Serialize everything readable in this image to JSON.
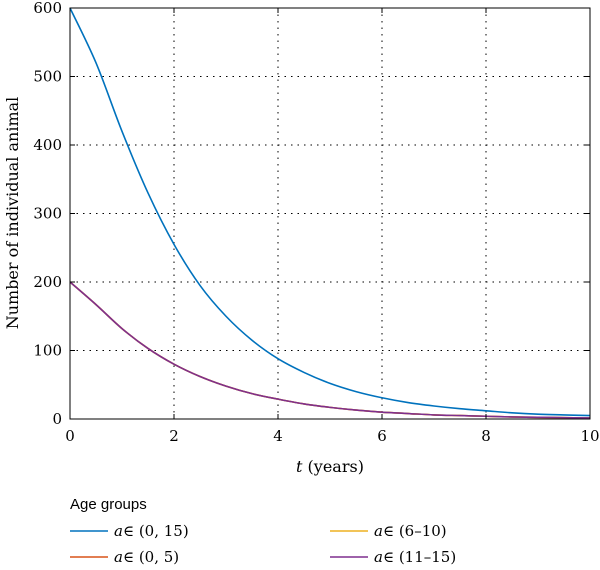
{
  "chart_data": {
    "type": "line",
    "xlabel_italic": "t",
    "xlabel_rest": " (years)",
    "ylabel": "Number of individual animal",
    "xlim": [
      0,
      10
    ],
    "ylim": [
      0,
      600
    ],
    "xticks": [
      0,
      2,
      4,
      6,
      8,
      10
    ],
    "yticks": [
      0,
      100,
      200,
      300,
      400,
      500,
      600
    ],
    "grid": true,
    "legend": {
      "title": "Age groups",
      "placement": "bottom"
    },
    "series": [
      {
        "name_italic": "a",
        "name_rest": "∈ (0, 15)",
        "color": "#0072BD",
        "x": [
          0,
          0.5,
          1,
          1.5,
          2,
          2.5,
          3,
          3.5,
          4,
          4.5,
          5,
          5.5,
          6,
          6.5,
          7,
          7.5,
          8,
          8.5,
          9,
          9.5,
          10
        ],
        "y": [
          600,
          520,
          420,
          330,
          255,
          195,
          150,
          115,
          88,
          68,
          52,
          40,
          31,
          24,
          19,
          15,
          12,
          9,
          7,
          6,
          5
        ]
      },
      {
        "name_italic": "a",
        "name_rest": "∈ (0, 5)",
        "color": "#D95319",
        "x": [
          0,
          0.5,
          1,
          1.5,
          2,
          2.5,
          3,
          3.5,
          4,
          4.5,
          5,
          5.5,
          6,
          6.5,
          7,
          7.5,
          8,
          8.5,
          9,
          9.5,
          10
        ],
        "y": [
          200,
          167,
          132,
          103,
          80,
          62,
          48,
          37,
          29,
          22,
          17,
          13,
          10,
          8,
          6,
          5,
          4,
          3,
          2.5,
          2,
          1.5
        ]
      },
      {
        "name_italic": "a",
        "name_rest": "∈ (6–10)",
        "color": "#EDB120",
        "x": [
          0,
          0.5,
          1,
          1.5,
          2,
          2.5,
          3,
          3.5,
          4,
          4.5,
          5,
          5.5,
          6,
          6.5,
          7,
          7.5,
          8,
          8.5,
          9,
          9.5,
          10
        ],
        "y": [
          200,
          167,
          132,
          103,
          80,
          62,
          48,
          37,
          29,
          22,
          17,
          13,
          10,
          8,
          6,
          5,
          4,
          3,
          2.5,
          2,
          1.5
        ]
      },
      {
        "name_italic": "a",
        "name_rest": "∈ (11–15)",
        "color": "#7E2F8E",
        "x": [
          0,
          0.5,
          1,
          1.5,
          2,
          2.5,
          3,
          3.5,
          4,
          4.5,
          5,
          5.5,
          6,
          6.5,
          7,
          7.5,
          8,
          8.5,
          9,
          9.5,
          10
        ],
        "y": [
          200,
          167,
          132,
          103,
          80,
          62,
          48,
          37,
          29,
          22,
          17,
          13,
          10,
          8,
          6,
          5,
          4,
          3,
          2.5,
          2,
          1.5
        ]
      }
    ]
  }
}
